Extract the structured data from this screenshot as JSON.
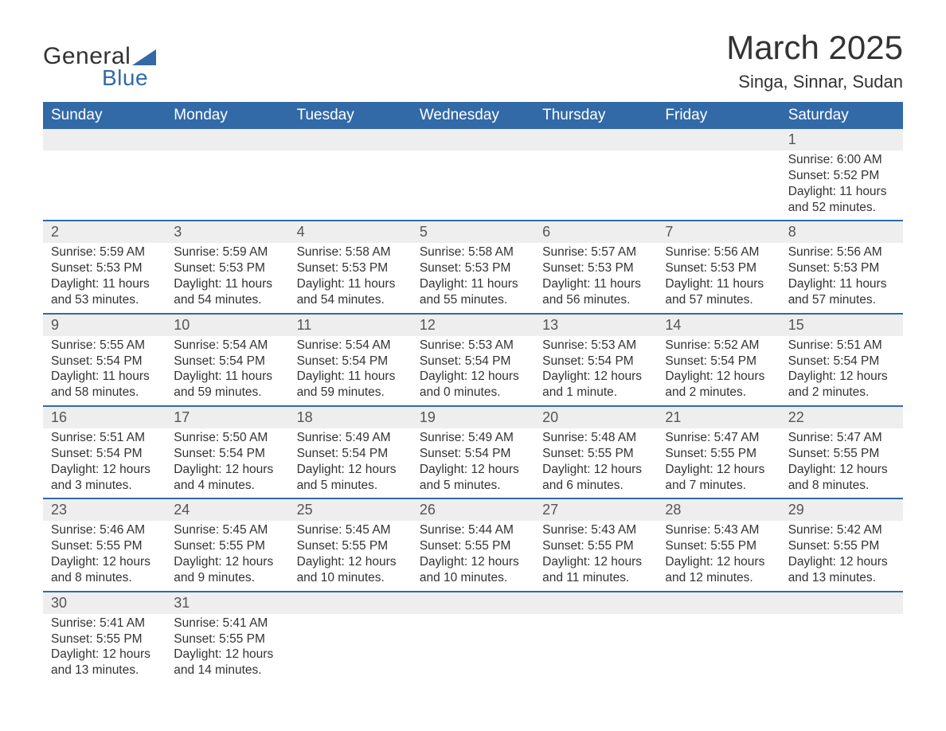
{
  "logo": {
    "general": "General",
    "blue": "Blue",
    "triangle_color": "#326aa8"
  },
  "title": "March 2025",
  "location": "Singa, Sinnar, Sudan",
  "colors": {
    "header_bg": "#326aa8",
    "header_text": "#ffffff",
    "daynum_bg": "#eeeeee",
    "row_divider": "#326aa8",
    "body_text": "#333333",
    "background": "#ffffff"
  },
  "typography": {
    "title_fontsize": 42,
    "location_fontsize": 22,
    "weekday_fontsize": 19,
    "daynum_fontsize": 18,
    "detail_fontsize": 15.5
  },
  "weekdays": [
    "Sunday",
    "Monday",
    "Tuesday",
    "Wednesday",
    "Thursday",
    "Friday",
    "Saturday"
  ],
  "weeks": [
    [
      null,
      null,
      null,
      null,
      null,
      null,
      {
        "n": "1",
        "sr": "Sunrise: 6:00 AM",
        "ss": "Sunset: 5:52 PM",
        "d1": "Daylight: 11 hours",
        "d2": "and 52 minutes."
      }
    ],
    [
      {
        "n": "2",
        "sr": "Sunrise: 5:59 AM",
        "ss": "Sunset: 5:53 PM",
        "d1": "Daylight: 11 hours",
        "d2": "and 53 minutes."
      },
      {
        "n": "3",
        "sr": "Sunrise: 5:59 AM",
        "ss": "Sunset: 5:53 PM",
        "d1": "Daylight: 11 hours",
        "d2": "and 54 minutes."
      },
      {
        "n": "4",
        "sr": "Sunrise: 5:58 AM",
        "ss": "Sunset: 5:53 PM",
        "d1": "Daylight: 11 hours",
        "d2": "and 54 minutes."
      },
      {
        "n": "5",
        "sr": "Sunrise: 5:58 AM",
        "ss": "Sunset: 5:53 PM",
        "d1": "Daylight: 11 hours",
        "d2": "and 55 minutes."
      },
      {
        "n": "6",
        "sr": "Sunrise: 5:57 AM",
        "ss": "Sunset: 5:53 PM",
        "d1": "Daylight: 11 hours",
        "d2": "and 56 minutes."
      },
      {
        "n": "7",
        "sr": "Sunrise: 5:56 AM",
        "ss": "Sunset: 5:53 PM",
        "d1": "Daylight: 11 hours",
        "d2": "and 57 minutes."
      },
      {
        "n": "8",
        "sr": "Sunrise: 5:56 AM",
        "ss": "Sunset: 5:53 PM",
        "d1": "Daylight: 11 hours",
        "d2": "and 57 minutes."
      }
    ],
    [
      {
        "n": "9",
        "sr": "Sunrise: 5:55 AM",
        "ss": "Sunset: 5:54 PM",
        "d1": "Daylight: 11 hours",
        "d2": "and 58 minutes."
      },
      {
        "n": "10",
        "sr": "Sunrise: 5:54 AM",
        "ss": "Sunset: 5:54 PM",
        "d1": "Daylight: 11 hours",
        "d2": "and 59 minutes."
      },
      {
        "n": "11",
        "sr": "Sunrise: 5:54 AM",
        "ss": "Sunset: 5:54 PM",
        "d1": "Daylight: 11 hours",
        "d2": "and 59 minutes."
      },
      {
        "n": "12",
        "sr": "Sunrise: 5:53 AM",
        "ss": "Sunset: 5:54 PM",
        "d1": "Daylight: 12 hours",
        "d2": "and 0 minutes."
      },
      {
        "n": "13",
        "sr": "Sunrise: 5:53 AM",
        "ss": "Sunset: 5:54 PM",
        "d1": "Daylight: 12 hours",
        "d2": "and 1 minute."
      },
      {
        "n": "14",
        "sr": "Sunrise: 5:52 AM",
        "ss": "Sunset: 5:54 PM",
        "d1": "Daylight: 12 hours",
        "d2": "and 2 minutes."
      },
      {
        "n": "15",
        "sr": "Sunrise: 5:51 AM",
        "ss": "Sunset: 5:54 PM",
        "d1": "Daylight: 12 hours",
        "d2": "and 2 minutes."
      }
    ],
    [
      {
        "n": "16",
        "sr": "Sunrise: 5:51 AM",
        "ss": "Sunset: 5:54 PM",
        "d1": "Daylight: 12 hours",
        "d2": "and 3 minutes."
      },
      {
        "n": "17",
        "sr": "Sunrise: 5:50 AM",
        "ss": "Sunset: 5:54 PM",
        "d1": "Daylight: 12 hours",
        "d2": "and 4 minutes."
      },
      {
        "n": "18",
        "sr": "Sunrise: 5:49 AM",
        "ss": "Sunset: 5:54 PM",
        "d1": "Daylight: 12 hours",
        "d2": "and 5 minutes."
      },
      {
        "n": "19",
        "sr": "Sunrise: 5:49 AM",
        "ss": "Sunset: 5:54 PM",
        "d1": "Daylight: 12 hours",
        "d2": "and 5 minutes."
      },
      {
        "n": "20",
        "sr": "Sunrise: 5:48 AM",
        "ss": "Sunset: 5:55 PM",
        "d1": "Daylight: 12 hours",
        "d2": "and 6 minutes."
      },
      {
        "n": "21",
        "sr": "Sunrise: 5:47 AM",
        "ss": "Sunset: 5:55 PM",
        "d1": "Daylight: 12 hours",
        "d2": "and 7 minutes."
      },
      {
        "n": "22",
        "sr": "Sunrise: 5:47 AM",
        "ss": "Sunset: 5:55 PM",
        "d1": "Daylight: 12 hours",
        "d2": "and 8 minutes."
      }
    ],
    [
      {
        "n": "23",
        "sr": "Sunrise: 5:46 AM",
        "ss": "Sunset: 5:55 PM",
        "d1": "Daylight: 12 hours",
        "d2": "and 8 minutes."
      },
      {
        "n": "24",
        "sr": "Sunrise: 5:45 AM",
        "ss": "Sunset: 5:55 PM",
        "d1": "Daylight: 12 hours",
        "d2": "and 9 minutes."
      },
      {
        "n": "25",
        "sr": "Sunrise: 5:45 AM",
        "ss": "Sunset: 5:55 PM",
        "d1": "Daylight: 12 hours",
        "d2": "and 10 minutes."
      },
      {
        "n": "26",
        "sr": "Sunrise: 5:44 AM",
        "ss": "Sunset: 5:55 PM",
        "d1": "Daylight: 12 hours",
        "d2": "and 10 minutes."
      },
      {
        "n": "27",
        "sr": "Sunrise: 5:43 AM",
        "ss": "Sunset: 5:55 PM",
        "d1": "Daylight: 12 hours",
        "d2": "and 11 minutes."
      },
      {
        "n": "28",
        "sr": "Sunrise: 5:43 AM",
        "ss": "Sunset: 5:55 PM",
        "d1": "Daylight: 12 hours",
        "d2": "and 12 minutes."
      },
      {
        "n": "29",
        "sr": "Sunrise: 5:42 AM",
        "ss": "Sunset: 5:55 PM",
        "d1": "Daylight: 12 hours",
        "d2": "and 13 minutes."
      }
    ],
    [
      {
        "n": "30",
        "sr": "Sunrise: 5:41 AM",
        "ss": "Sunset: 5:55 PM",
        "d1": "Daylight: 12 hours",
        "d2": "and 13 minutes."
      },
      {
        "n": "31",
        "sr": "Sunrise: 5:41 AM",
        "ss": "Sunset: 5:55 PM",
        "d1": "Daylight: 12 hours",
        "d2": "and 14 minutes."
      },
      null,
      null,
      null,
      null,
      null
    ]
  ]
}
